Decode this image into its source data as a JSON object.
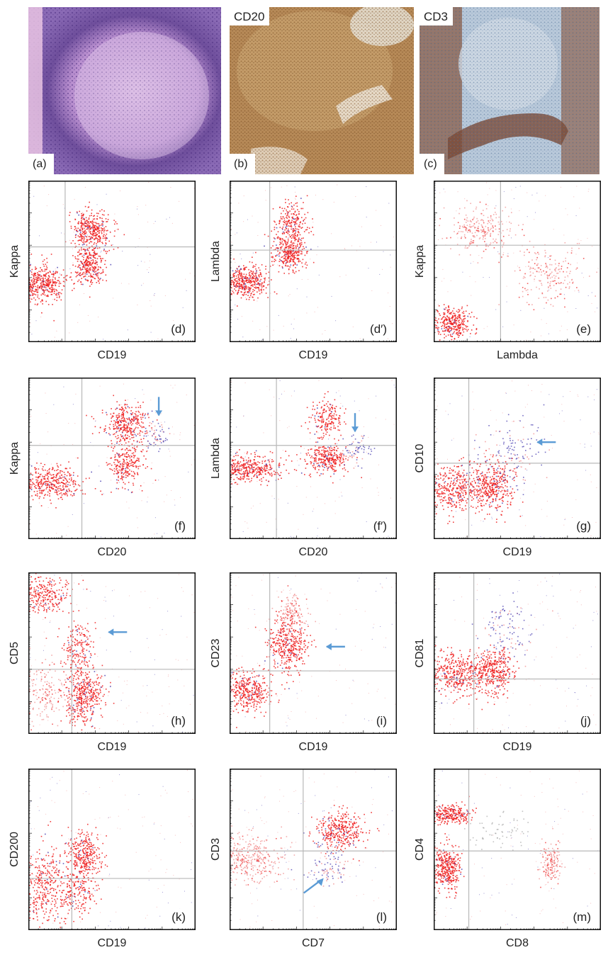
{
  "micrographs": [
    {
      "id": "a",
      "label": "(a)",
      "stain": "",
      "bg": "#c9a6d6"
    },
    {
      "id": "b",
      "label": "(b)",
      "stain": "CD20",
      "bg": "#b98d5e"
    },
    {
      "id": "c",
      "label": "(c)",
      "stain": "CD3",
      "bg": "#b7c6d8"
    }
  ],
  "plots": [
    {
      "id": "d",
      "label": "(d)",
      "xlabel": "CD19",
      "ylabel": "Kappa"
    },
    {
      "id": "d2",
      "label": "(d′)",
      "xlabel": "CD19",
      "ylabel": "Lambda"
    },
    {
      "id": "e",
      "label": "(e)",
      "xlabel": "Lambda",
      "ylabel": "Kappa"
    },
    {
      "id": "f",
      "label": "(f)",
      "xlabel": "CD20",
      "ylabel": "Kappa"
    },
    {
      "id": "f2",
      "label": "(f′)",
      "xlabel": "CD20",
      "ylabel": "Lambda"
    },
    {
      "id": "g",
      "label": "(g)",
      "xlabel": "CD19",
      "ylabel": "CD10"
    },
    {
      "id": "h",
      "label": "(h)",
      "xlabel": "CD19",
      "ylabel": "CD5"
    },
    {
      "id": "i",
      "label": "(i)",
      "xlabel": "CD19",
      "ylabel": "CD23"
    },
    {
      "id": "j",
      "label": "(j)",
      "xlabel": "CD19",
      "ylabel": "CD81"
    },
    {
      "id": "k",
      "label": "(k)",
      "xlabel": "CD19",
      "ylabel": "CD200"
    },
    {
      "id": "l",
      "label": "(l)",
      "xlabel": "CD7",
      "ylabel": "CD3"
    },
    {
      "id": "m",
      "label": "(m)",
      "xlabel": "CD8",
      "ylabel": "CD4"
    }
  ],
  "colors": {
    "events": "#ee1c1c",
    "events_dim": "#f08a8a",
    "events_blue": "#4a3fb0",
    "gate": "#b8b8b8",
    "arrow": "#5b9bd5",
    "frame": "#111111"
  }
}
